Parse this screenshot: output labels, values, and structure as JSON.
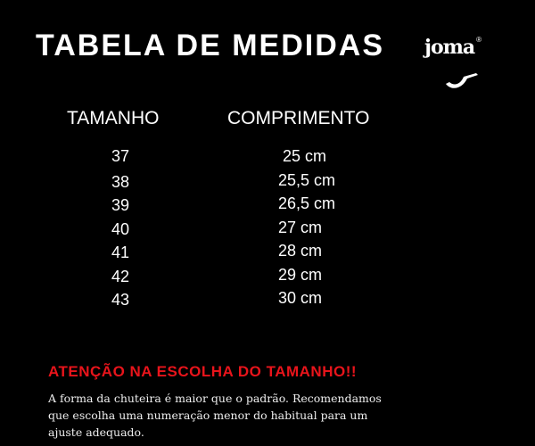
{
  "title": "TABELA DE MEDIDAS",
  "brand": {
    "name": "joma",
    "registered": "®"
  },
  "table": {
    "headers": [
      "TAMANHO",
      "COMPRIMENTO"
    ],
    "rows": [
      {
        "size": "37",
        "length": "25 cm"
      },
      {
        "size": "38",
        "length": "25,5 cm"
      },
      {
        "size": "39",
        "length": "26,5 cm"
      },
      {
        "size": "40",
        "length": "27 cm"
      },
      {
        "size": "41",
        "length": "28 cm"
      },
      {
        "size": "42",
        "length": "29 cm"
      },
      {
        "size": "43",
        "length": "30 cm"
      }
    ]
  },
  "warning": {
    "title": "ATENÇÃO NA ESCOLHA DO TAMANHO!!",
    "text": "A forma da chuteira é maior que o padrão. Recomendamos que escolha uma numeração menor do habitual para um ajuste adequado.",
    "color": "#e8141b"
  }
}
